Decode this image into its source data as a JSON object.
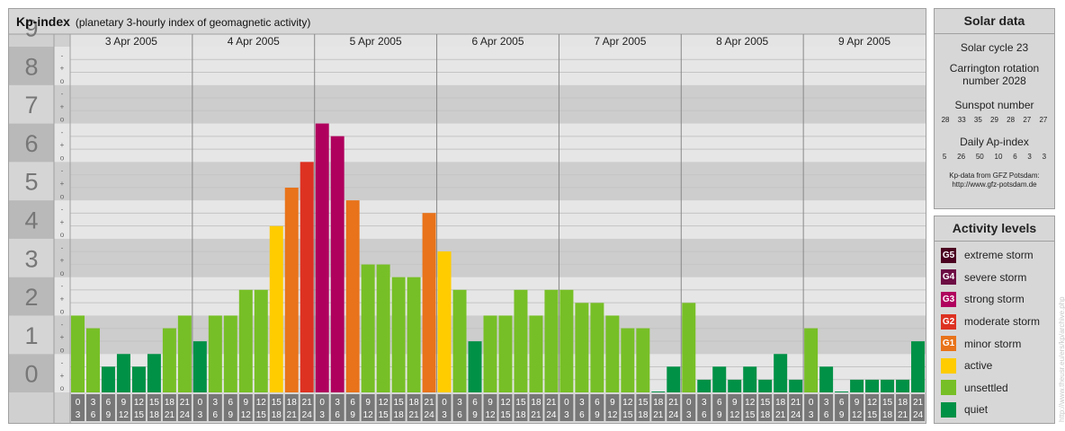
{
  "header": {
    "title": "Kp-index",
    "subtitle": "(planetary 3-hourly index of geomagnetic activity)"
  },
  "chart_data": {
    "type": "bar",
    "title": "Kp-index",
    "subtitle": "(planetary 3-hourly index of geomagnetic activity)",
    "ylim": [
      0,
      9
    ],
    "y_ticks": [
      "0",
      "1",
      "2",
      "3",
      "4",
      "5",
      "6",
      "7",
      "8",
      "9"
    ],
    "minor_tick_symbols": [
      "o",
      "+",
      "-"
    ],
    "days": [
      "3 Apr 2005",
      "4 Apr 2005",
      "5 Apr 2005",
      "6 Apr 2005",
      "7 Apr 2005",
      "8 Apr 2005",
      "9 Apr 2005"
    ],
    "interval_start_labels": [
      "0",
      "3",
      "6",
      "9",
      "12",
      "15",
      "18",
      "21"
    ],
    "interval_end_labels": [
      "3",
      "6",
      "9",
      "12",
      "15",
      "18",
      "21",
      "24"
    ],
    "values": [
      [
        2.0,
        1.67,
        0.67,
        1.0,
        0.67,
        1.0,
        1.67,
        2.0
      ],
      [
        1.33,
        2.0,
        2.0,
        2.67,
        2.67,
        4.33,
        5.33,
        6.0
      ],
      [
        7.0,
        6.67,
        5.0,
        3.33,
        3.33,
        3.0,
        3.0,
        4.67
      ],
      [
        3.67,
        2.67,
        1.33,
        2.0,
        2.0,
        2.67,
        2.0,
        2.67
      ],
      [
        2.67,
        2.33,
        2.33,
        2.0,
        1.67,
        1.67,
        0.0,
        0.67
      ],
      [
        2.33,
        0.33,
        0.67,
        0.33,
        0.67,
        0.33,
        1.0,
        0.33
      ],
      [
        1.67,
        0.67,
        0.0,
        0.33,
        0.33,
        0.33,
        0.33,
        1.33
      ]
    ],
    "grid": true
  },
  "colors": {
    "quiet": "#009146",
    "unsettled": "#77bf26",
    "active": "#ffcc00",
    "G1": "#e8731a",
    "G2": "#dd3222",
    "G3": "#b0005e",
    "G4": "#6d0d44",
    "G5": "#4b0020"
  },
  "solar_data": {
    "title": "Solar data",
    "cycle": "Solar cycle 23",
    "carrington": "Carrington rotation number 2028",
    "sunspot_label": "Sunspot number",
    "sunspot_numbers": [
      "28",
      "33",
      "35",
      "29",
      "28",
      "27",
      "27"
    ],
    "ap_label": "Daily Ap-index",
    "ap_values": [
      "5",
      "26",
      "50",
      "10",
      "6",
      "3",
      "3"
    ],
    "source_line1": "Kp-data from GFZ Potsdam:",
    "source_line2": "http://www.gfz-potsdam.de"
  },
  "legend": {
    "title": "Activity levels",
    "items": [
      {
        "code": "G5",
        "label": "extreme storm",
        "color": "#4b0020"
      },
      {
        "code": "G4",
        "label": "severe storm",
        "color": "#6d0d44"
      },
      {
        "code": "G3",
        "label": "strong storm",
        "color": "#b0005e"
      },
      {
        "code": "G2",
        "label": "moderate storm",
        "color": "#dd3222"
      },
      {
        "code": "G1",
        "label": "minor storm",
        "color": "#e8731a"
      },
      {
        "code": "",
        "label": "active",
        "color": "#ffcc00"
      },
      {
        "code": "",
        "label": "unsettled",
        "color": "#77bf26"
      },
      {
        "code": "",
        "label": "quiet",
        "color": "#009146"
      }
    ]
  },
  "watermark": "http://www.theusr.eu/ers/kp/archive.php"
}
